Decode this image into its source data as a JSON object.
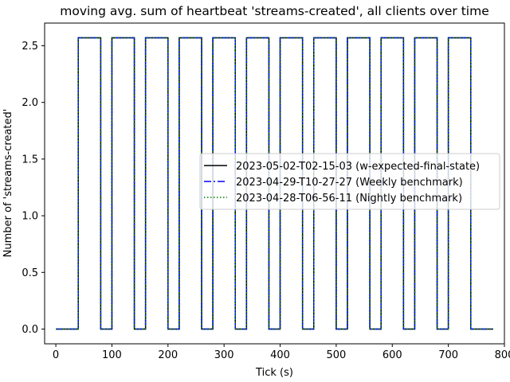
{
  "chart_data": {
    "type": "line",
    "title": "moving avg. sum of heartbeat 'streams-created', all clients over time",
    "xlabel": "Tick (s)",
    "ylabel": "Number of 'streams-created'",
    "xlim": [
      -20,
      800
    ],
    "ylim": [
      -0.13,
      2.7
    ],
    "xticks": [
      0,
      100,
      200,
      300,
      400,
      500,
      600,
      700,
      800
    ],
    "xtick_labels": [
      "0",
      "100",
      "200",
      "300",
      "400",
      "500",
      "600",
      "700",
      "800"
    ],
    "yticks": [
      0.0,
      0.5,
      1.0,
      1.5,
      2.0,
      2.5
    ],
    "ytick_labels": [
      "0.0",
      "0.5",
      "1.0",
      "1.5",
      "2.0",
      "2.5"
    ],
    "grid": false,
    "legend_position": "center-right",
    "step_value_high": 2.57,
    "step_value_low": 0,
    "pulses": [
      [
        40,
        80
      ],
      [
        100,
        140
      ],
      [
        160,
        200
      ],
      [
        220,
        260
      ],
      [
        280,
        320
      ],
      [
        340,
        380
      ],
      [
        400,
        440
      ],
      [
        460,
        500
      ],
      [
        520,
        560
      ],
      [
        580,
        620
      ],
      [
        640,
        680
      ],
      [
        700,
        740
      ]
    ],
    "x_start": 0,
    "x_end": 780,
    "series": [
      {
        "name": "2023-05-02-T02-15-03 (w-expected-final-state)",
        "color": "#000000",
        "linestyle": "solid"
      },
      {
        "name": "2023-04-29-T10-27-27 (Weekly benchmark)",
        "color": "#0000ff",
        "linestyle": "dashdot"
      },
      {
        "name": "2023-04-28-T06-56-11 (Nightly benchmark)",
        "color": "#008000",
        "linestyle": "dotted"
      }
    ]
  }
}
